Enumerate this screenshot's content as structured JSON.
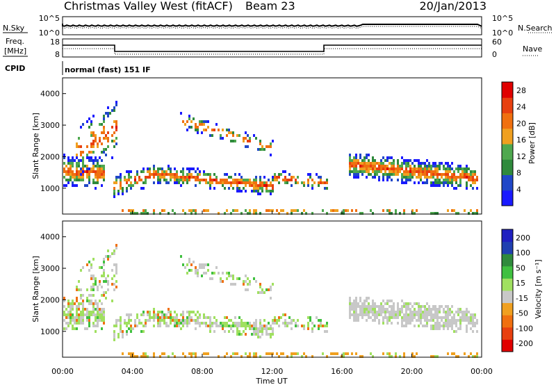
{
  "header": {
    "station": "Christmas Valley West (fitACF)",
    "beam": "Beam 23",
    "date": "20/Jan/2013"
  },
  "panels": {
    "nsky_label": "N.Sky",
    "nsearch_label": "N.Search",
    "freq_label_1": "Freq.",
    "freq_label_2": "[MHz]",
    "nave_label": "Nave",
    "cpid_label": "CPID",
    "cpid_value": "normal (fast) 151 IF",
    "noise_ticks_left": [
      "10^5",
      "10^0"
    ],
    "noise_ticks_right": [
      "10^5",
      "10^0"
    ],
    "freq_ticks_left": [
      "18",
      "8"
    ],
    "nave_ticks_right": [
      "60",
      "0"
    ]
  },
  "colors": {
    "power": [
      "#1a1aff",
      "#2047c8",
      "#2f8a3c",
      "#4fa84f",
      "#f0a020",
      "#f07010",
      "#e84010",
      "#e00000"
    ],
    "velocity": [
      "#e00000",
      "#e84010",
      "#f07010",
      "#f0a020",
      "#c8c8c8",
      "#a0e060",
      "#40c040",
      "#2f8a3c",
      "#2040b0",
      "#2020c0"
    ]
  },
  "chart_data": [
    {
      "type": "heatmap",
      "title": "Power",
      "ylabel": "Slant Range [km]",
      "yticks": [
        "1000",
        "2000",
        "3000",
        "4000"
      ],
      "ylim": [
        180,
        4500
      ],
      "x": [
        "00:00",
        "04:00",
        "08:00",
        "12:00",
        "16:00",
        "20:00",
        "00:00"
      ],
      "colorbar_label": "Power [dB]",
      "colorbar_ticks": [
        "4",
        "8",
        "12",
        "16",
        "20",
        "24",
        "28"
      ],
      "colorbar_range": [
        0,
        30
      ]
    },
    {
      "type": "heatmap",
      "title": "Velocity",
      "ylabel": "Slant Range [km]",
      "yticks": [
        "1000",
        "2000",
        "3000",
        "4000"
      ],
      "ylim": [
        180,
        4500
      ],
      "x": [
        "00:00",
        "04:00",
        "08:00",
        "12:00",
        "16:00",
        "20:00",
        "00:00"
      ],
      "xlabel": "Time UT",
      "colorbar_label": "Velocity [m s⁻¹]",
      "colorbar_ticks": [
        "200",
        "100",
        "50",
        "15",
        "-15",
        "-50",
        "-100",
        "-200"
      ],
      "colorbar_range": [
        -250,
        250
      ]
    }
  ]
}
